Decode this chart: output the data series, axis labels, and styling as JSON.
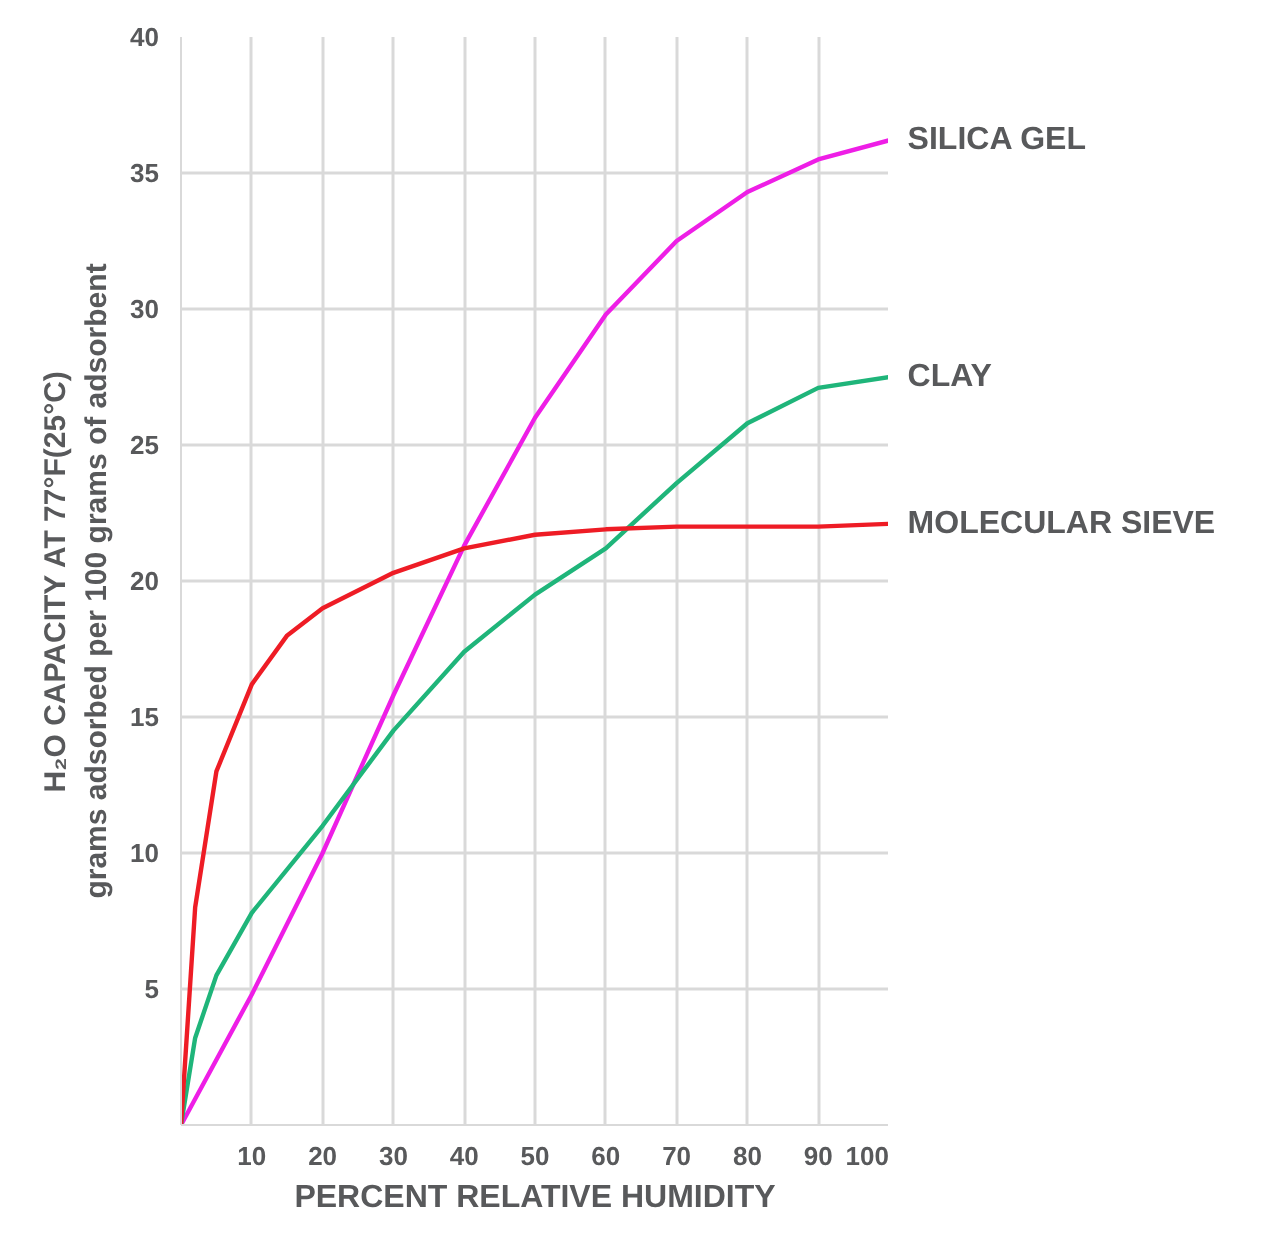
{
  "chart_data": {
    "type": "line",
    "xlabel": "PERCENT RELATIVE HUMIDITY",
    "ylabel": "H₂O CAPACITY AT 77°F(25°C)\ngrams adsorbed per 100 grams of adsorbent",
    "xlim": [
      0,
      100
    ],
    "ylim": [
      0,
      40
    ],
    "xticks": [
      10,
      20,
      30,
      40,
      50,
      60,
      70,
      80,
      90,
      100
    ],
    "yticks": [
      5,
      10,
      15,
      20,
      25,
      30,
      35,
      40
    ],
    "grid": true,
    "marker": "none",
    "line_style": "solid",
    "series": [
      {
        "name": "SILICA GEL",
        "color": "#ee1ee6",
        "x": [
          0,
          10,
          20,
          30,
          40,
          50,
          60,
          70,
          80,
          90,
          100
        ],
        "values": [
          0,
          4.8,
          10,
          15.8,
          21.3,
          26,
          29.8,
          32.5,
          34.3,
          35.5,
          36.2
        ]
      },
      {
        "name": "CLAY",
        "color": "#1fb57a",
        "x": [
          0,
          2,
          5,
          10,
          20,
          30,
          40,
          50,
          60,
          70,
          80,
          90,
          100
        ],
        "values": [
          0,
          3.2,
          5.5,
          7.8,
          11,
          14.5,
          17.4,
          19.5,
          21.2,
          23.6,
          25.8,
          27.1,
          27.5
        ]
      },
      {
        "name": "MOLECULAR SIEVE",
        "color": "#ee1c25",
        "x": [
          0,
          2,
          5,
          10,
          15,
          20,
          30,
          40,
          50,
          60,
          70,
          80,
          90,
          100
        ],
        "values": [
          0,
          8,
          13,
          16.2,
          18,
          19,
          20.3,
          21.2,
          21.7,
          21.9,
          22,
          22,
          22,
          22.1
        ]
      }
    ]
  }
}
